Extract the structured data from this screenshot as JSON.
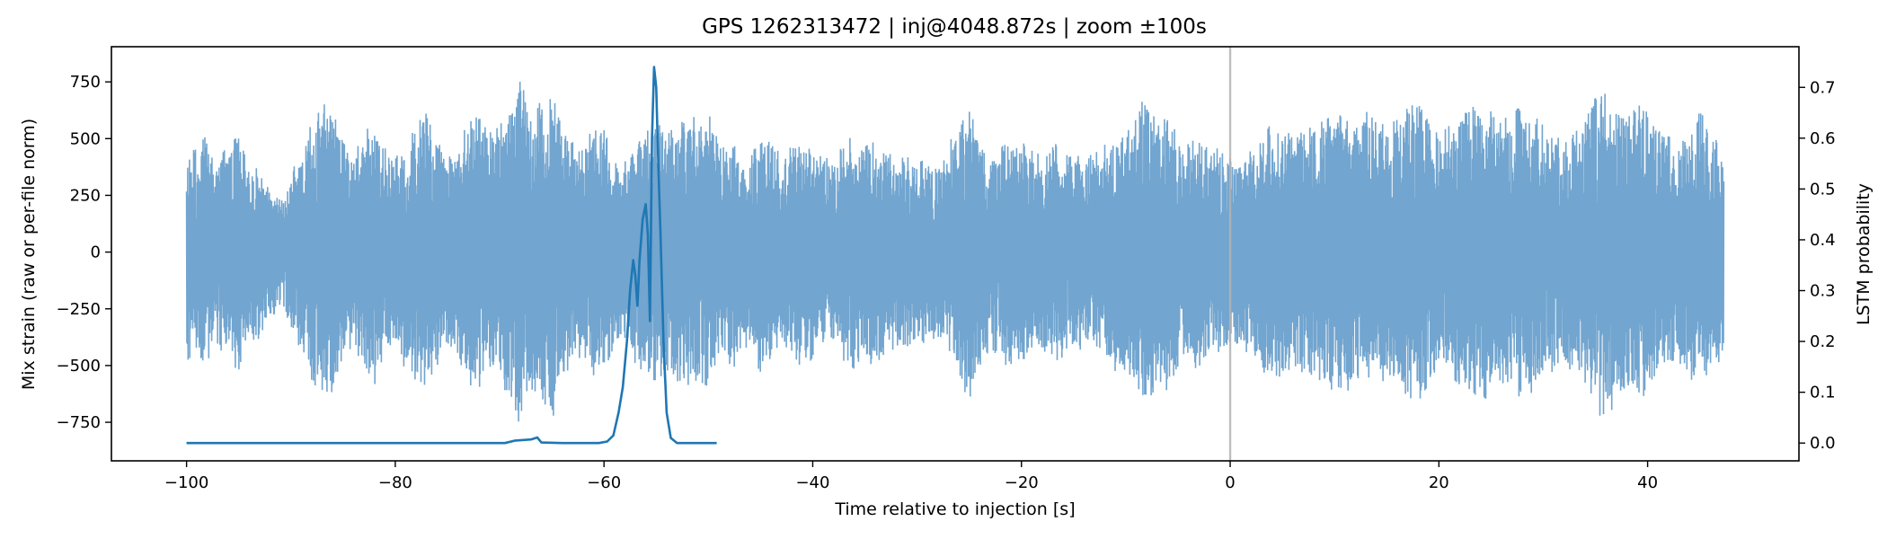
{
  "chart_data": {
    "type": "line",
    "title": "GPS 1262313472 | inj@4048.872s | zoom ±100s",
    "xlabel": "Time relative to injection [s]",
    "ylabel_left": "Mix strain (raw or per-file norm)",
    "ylabel_right": "LSTM probability",
    "xlim": [
      -107.2,
      54.5
    ],
    "ylim_left": [
      -920,
      905
    ],
    "ylim_right": [
      -0.035,
      0.78
    ],
    "xticks": [
      -100,
      -80,
      -60,
      -40,
      -20,
      0,
      20,
      40
    ],
    "xtick_labels": [
      "−100",
      "−80",
      "−60",
      "−40",
      "−20",
      "0",
      "20",
      "40"
    ],
    "yticks_left": [
      -750,
      -500,
      -250,
      0,
      250,
      500,
      750
    ],
    "ytick_labels_left": [
      "−750",
      "−500",
      "−250",
      "0",
      "250",
      "500",
      "750"
    ],
    "yticks_right": [
      0.0,
      0.1,
      0.2,
      0.3,
      0.4,
      0.5,
      0.6,
      0.7
    ],
    "ytick_labels_right": [
      "0.0",
      "0.1",
      "0.2",
      "0.3",
      "0.4",
      "0.5",
      "0.6",
      "0.7"
    ],
    "injection_marker_x": 0,
    "grid": false,
    "series": [
      {
        "axis": "left",
        "color": "#6aa0cc",
        "style": "dense-oscillating",
        "x_range": [
          -100,
          47.3
        ],
        "envelope": [
          [
            -100,
            460
          ],
          [
            -99,
            430
          ],
          [
            -98,
            520
          ],
          [
            -97,
            380
          ],
          [
            -96,
            480
          ],
          [
            -95,
            540
          ],
          [
            -94,
            400
          ],
          [
            -93,
            350
          ],
          [
            -92,
            300
          ],
          [
            -91,
            230
          ],
          [
            -90,
            330
          ],
          [
            -89,
            420
          ],
          [
            -88,
            560
          ],
          [
            -87,
            680
          ],
          [
            -86,
            620
          ],
          [
            -85,
            480
          ],
          [
            -84,
            400
          ],
          [
            -83,
            520
          ],
          [
            -82,
            560
          ],
          [
            -81,
            450
          ],
          [
            -80,
            390
          ],
          [
            -79,
            520
          ],
          [
            -78,
            580
          ],
          [
            -77,
            600
          ],
          [
            -76,
            480
          ],
          [
            -75,
            400
          ],
          [
            -74,
            460
          ],
          [
            -73,
            560
          ],
          [
            -72,
            620
          ],
          [
            -71,
            520
          ],
          [
            -70,
            560
          ],
          [
            -69,
            650
          ],
          [
            -68,
            760
          ],
          [
            -67,
            600
          ],
          [
            -66,
            640
          ],
          [
            -65,
            720
          ],
          [
            -64,
            540
          ],
          [
            -63,
            470
          ],
          [
            -62,
            430
          ],
          [
            -61,
            560
          ],
          [
            -60,
            520
          ],
          [
            -59,
            430
          ],
          [
            -58,
            380
          ],
          [
            -57,
            480
          ],
          [
            -56,
            530
          ],
          [
            -55,
            600
          ],
          [
            -54,
            520
          ],
          [
            -53,
            560
          ],
          [
            -52,
            620
          ],
          [
            -51,
            560
          ],
          [
            -50,
            600
          ],
          [
            -49,
            480
          ],
          [
            -48,
            520
          ],
          [
            -47,
            450
          ],
          [
            -46,
            400
          ],
          [
            -45,
            530
          ],
          [
            -44,
            480
          ],
          [
            -43,
            420
          ],
          [
            -42,
            460
          ],
          [
            -41,
            510
          ],
          [
            -40,
            460
          ],
          [
            -39,
            420
          ],
          [
            -38,
            380
          ],
          [
            -37,
            470
          ],
          [
            -36,
            520
          ],
          [
            -35,
            480
          ],
          [
            -34,
            470
          ],
          [
            -33,
            430
          ],
          [
            -32,
            400
          ],
          [
            -31,
            440
          ],
          [
            -30,
            420
          ],
          [
            -29,
            400
          ],
          [
            -28,
            380
          ],
          [
            -27,
            460
          ],
          [
            -26,
            560
          ],
          [
            -25,
            640
          ],
          [
            -24,
            500
          ],
          [
            -23,
            430
          ],
          [
            -22,
            460
          ],
          [
            -21,
            520
          ],
          [
            -20,
            480
          ],
          [
            -19,
            440
          ],
          [
            -18,
            430
          ],
          [
            -17,
            480
          ],
          [
            -16,
            460
          ],
          [
            -15,
            430
          ],
          [
            -14,
            400
          ],
          [
            -13,
            430
          ],
          [
            -12,
            470
          ],
          [
            -11,
            520
          ],
          [
            -10,
            560
          ],
          [
            -9,
            620
          ],
          [
            -8,
            680
          ],
          [
            -7,
            560
          ],
          [
            -6,
            620
          ],
          [
            -5,
            500
          ],
          [
            -4,
            460
          ],
          [
            -3,
            500
          ],
          [
            -2,
            460
          ],
          [
            -1,
            430
          ],
          [
            0,
            420
          ],
          [
            1,
            400
          ],
          [
            2,
            450
          ],
          [
            3,
            520
          ],
          [
            4,
            560
          ],
          [
            5,
            530
          ],
          [
            6,
            480
          ],
          [
            7,
            520
          ],
          [
            8,
            560
          ],
          [
            9,
            580
          ],
          [
            10,
            600
          ],
          [
            11,
            630
          ],
          [
            12,
            580
          ],
          [
            13,
            600
          ],
          [
            14,
            560
          ],
          [
            15,
            540
          ],
          [
            16,
            580
          ],
          [
            17,
            620
          ],
          [
            18,
            640
          ],
          [
            19,
            600
          ],
          [
            20,
            540
          ],
          [
            21,
            560
          ],
          [
            22,
            600
          ],
          [
            23,
            620
          ],
          [
            24,
            660
          ],
          [
            25,
            620
          ],
          [
            26,
            560
          ],
          [
            27,
            600
          ],
          [
            28,
            640
          ],
          [
            29,
            600
          ],
          [
            30,
            560
          ],
          [
            31,
            520
          ],
          [
            32,
            480
          ],
          [
            33,
            540
          ],
          [
            34,
            600
          ],
          [
            35,
            700
          ],
          [
            36,
            780
          ],
          [
            37,
            640
          ],
          [
            38,
            600
          ],
          [
            39,
            660
          ],
          [
            40,
            620
          ],
          [
            41,
            560
          ],
          [
            42,
            520
          ],
          [
            43,
            480
          ],
          [
            44,
            540
          ],
          [
            45,
            600
          ],
          [
            46,
            520
          ],
          [
            47,
            460
          ]
        ]
      },
      {
        "axis": "right",
        "color": "#1f77b4",
        "style": "line",
        "points": [
          [
            -100,
            0.0
          ],
          [
            -96,
            0.0
          ],
          [
            -90,
            0.0
          ],
          [
            -80,
            0.0
          ],
          [
            -72,
            0.0
          ],
          [
            -69.5,
            0.0
          ],
          [
            -68.5,
            0.005
          ],
          [
            -67,
            0.007
          ],
          [
            -66.4,
            0.011
          ],
          [
            -66,
            0.001
          ],
          [
            -64,
            0.0
          ],
          [
            -60.5,
            0.0
          ],
          [
            -59.7,
            0.003
          ],
          [
            -59.1,
            0.015
          ],
          [
            -58.6,
            0.06
          ],
          [
            -58.2,
            0.11
          ],
          [
            -57.8,
            0.2
          ],
          [
            -57.5,
            0.3
          ],
          [
            -57.2,
            0.36
          ],
          [
            -57.0,
            0.33
          ],
          [
            -56.8,
            0.27
          ],
          [
            -56.6,
            0.36
          ],
          [
            -56.3,
            0.44
          ],
          [
            -56.0,
            0.47
          ],
          [
            -55.8,
            0.41
          ],
          [
            -55.6,
            0.24
          ],
          [
            -55.4,
            0.6
          ],
          [
            -55.2,
            0.74
          ],
          [
            -55.0,
            0.7
          ],
          [
            -54.8,
            0.55
          ],
          [
            -54.6,
            0.42
          ],
          [
            -54.3,
            0.2
          ],
          [
            -54.0,
            0.06
          ],
          [
            -53.6,
            0.01
          ],
          [
            -53,
            0.0
          ],
          [
            -51,
            0.0
          ],
          [
            -49.2,
            0.0
          ]
        ]
      }
    ]
  }
}
